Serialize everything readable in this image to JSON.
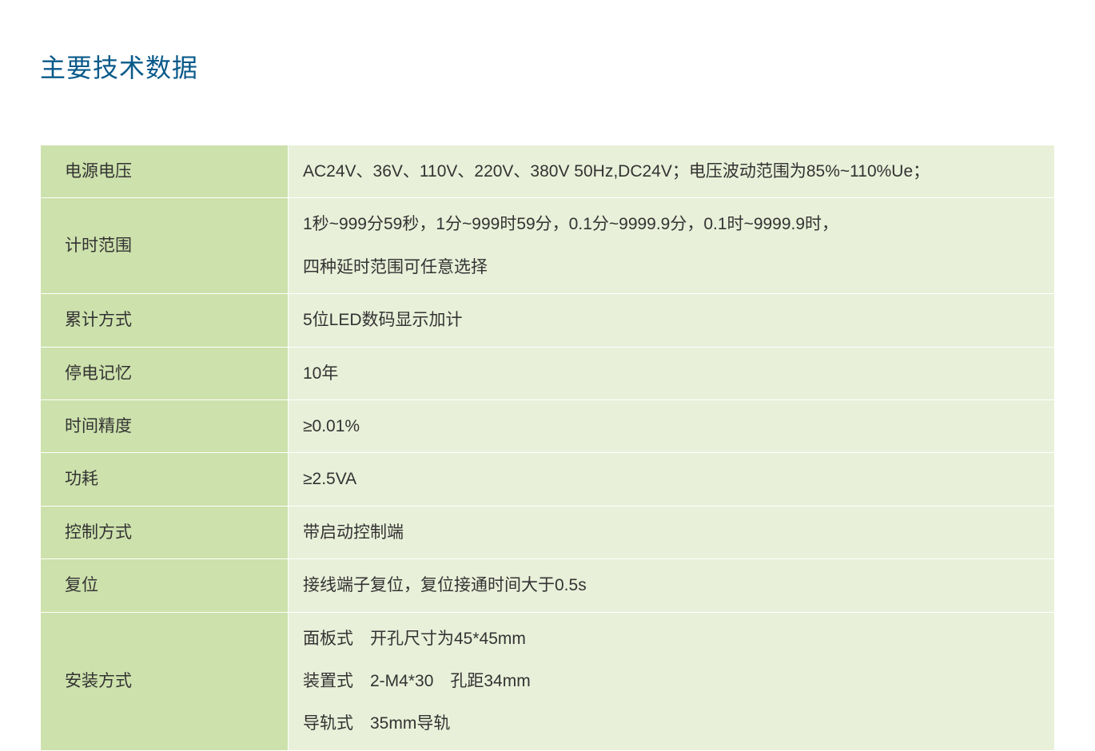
{
  "title": "主要技术数据",
  "colors": {
    "label_bg": "#cde1ac",
    "value_bg": "#e9f0d9",
    "title_color": "#0a5a8a",
    "text_color": "#333333",
    "border_color": "#ffffff"
  },
  "fontsize": {
    "title": 32,
    "body": 21
  },
  "rows": [
    {
      "label": "电源电压",
      "value": "AC24V、36V、110V、220V、380V 50Hz,DC24V；电压波动范围为85%~110%Ue；"
    },
    {
      "label": "计时范围",
      "value_lines": [
        "1秒~999分59秒，1分~999时59分，0.1分~9999.9分，0.1时~9999.9时，",
        "四种延时范围可任意选择"
      ]
    },
    {
      "label": "累计方式",
      "value": "5位LED数码显示加计"
    },
    {
      "label": "停电记忆",
      "value": "10年"
    },
    {
      "label": "时间精度",
      "value": "≥0.01%"
    },
    {
      "label": "功耗",
      "value": "≥2.5VA"
    },
    {
      "label": "控制方式",
      "value": "带启动控制端"
    },
    {
      "label": "复位",
      "value": "接线端子复位，复位接通时间大于0.5s"
    },
    {
      "label": "安装方式",
      "value_lines": [
        "面板式　开孔尺寸为45*45mm",
        "装置式　2-M4*30　孔距34mm",
        "导轨式　35mm导轨"
      ]
    }
  ]
}
